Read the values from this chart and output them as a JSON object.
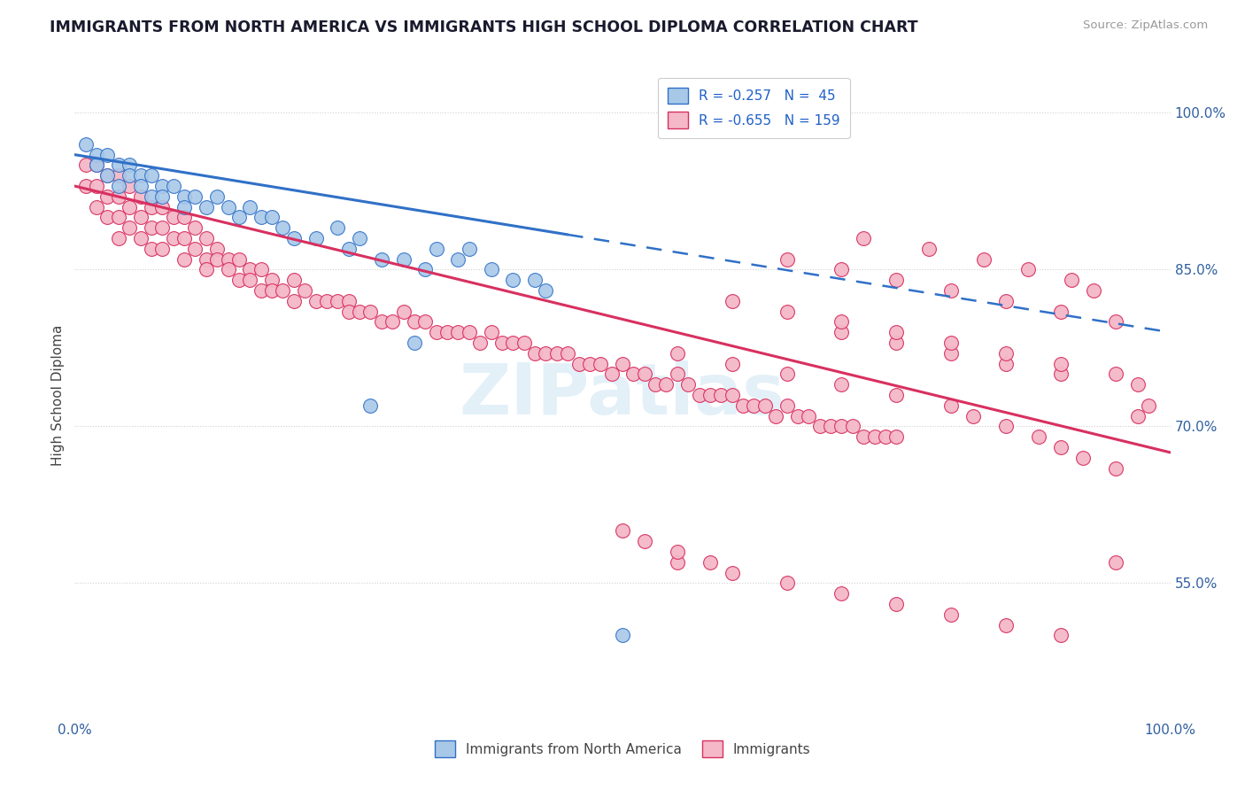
{
  "title": "IMMIGRANTS FROM NORTH AMERICA VS IMMIGRANTS HIGH SCHOOL DIPLOMA CORRELATION CHART",
  "source": "Source: ZipAtlas.com",
  "ylabel": "High School Diploma",
  "r_blue": -0.257,
  "n_blue": 45,
  "r_pink": -0.655,
  "n_pink": 159,
  "blue_color": "#a8c8e8",
  "pink_color": "#f4b8c8",
  "trendline_blue": "#3070c8",
  "trendline_pink": "#d83060",
  "xmin": 0.0,
  "xmax": 1.0,
  "ymin": 0.42,
  "ymax": 1.04,
  "right_yticks": [
    0.55,
    0.7,
    0.85,
    1.0
  ],
  "right_yticklabels": [
    "55.0%",
    "70.0%",
    "85.0%",
    "100.0%"
  ],
  "legend_label_blue": "Immigrants from North America",
  "legend_label_pink": "Immigrants",
  "watermark": "ZIPatlas",
  "blue_scatter_x": [
    0.01,
    0.02,
    0.02,
    0.03,
    0.03,
    0.04,
    0.04,
    0.05,
    0.05,
    0.06,
    0.06,
    0.07,
    0.07,
    0.08,
    0.08,
    0.09,
    0.1,
    0.1,
    0.11,
    0.12,
    0.13,
    0.14,
    0.15,
    0.17,
    0.19,
    0.2,
    0.22,
    0.25,
    0.28,
    0.3,
    0.32,
    0.35,
    0.38,
    0.4,
    0.42,
    0.16,
    0.18,
    0.24,
    0.26,
    0.33,
    0.36,
    0.43,
    0.5,
    0.27,
    0.31
  ],
  "blue_scatter_y": [
    0.97,
    0.96,
    0.95,
    0.96,
    0.94,
    0.95,
    0.93,
    0.95,
    0.94,
    0.94,
    0.93,
    0.94,
    0.92,
    0.93,
    0.92,
    0.93,
    0.92,
    0.91,
    0.92,
    0.91,
    0.92,
    0.91,
    0.9,
    0.9,
    0.89,
    0.88,
    0.88,
    0.87,
    0.86,
    0.86,
    0.85,
    0.86,
    0.85,
    0.84,
    0.84,
    0.91,
    0.9,
    0.89,
    0.88,
    0.87,
    0.87,
    0.83,
    0.5,
    0.72,
    0.78
  ],
  "pink_scatter_x": [
    0.01,
    0.01,
    0.02,
    0.02,
    0.02,
    0.03,
    0.03,
    0.03,
    0.04,
    0.04,
    0.04,
    0.04,
    0.05,
    0.05,
    0.05,
    0.06,
    0.06,
    0.06,
    0.07,
    0.07,
    0.07,
    0.08,
    0.08,
    0.08,
    0.09,
    0.09,
    0.1,
    0.1,
    0.1,
    0.11,
    0.11,
    0.12,
    0.12,
    0.12,
    0.13,
    0.13,
    0.14,
    0.14,
    0.15,
    0.15,
    0.16,
    0.16,
    0.17,
    0.17,
    0.18,
    0.18,
    0.19,
    0.2,
    0.2,
    0.21,
    0.22,
    0.23,
    0.24,
    0.25,
    0.25,
    0.26,
    0.27,
    0.28,
    0.29,
    0.3,
    0.31,
    0.32,
    0.33,
    0.34,
    0.35,
    0.36,
    0.37,
    0.38,
    0.39,
    0.4,
    0.41,
    0.42,
    0.43,
    0.44,
    0.45,
    0.46,
    0.47,
    0.48,
    0.49,
    0.5,
    0.51,
    0.52,
    0.53,
    0.54,
    0.55,
    0.56,
    0.57,
    0.58,
    0.59,
    0.6,
    0.61,
    0.62,
    0.63,
    0.64,
    0.65,
    0.66,
    0.67,
    0.68,
    0.69,
    0.7,
    0.71,
    0.72,
    0.73,
    0.74,
    0.75,
    0.55,
    0.6,
    0.65,
    0.7,
    0.75,
    0.8,
    0.82,
    0.85,
    0.88,
    0.9,
    0.92,
    0.95,
    0.97,
    0.7,
    0.75,
    0.8,
    0.85,
    0.9,
    0.6,
    0.65,
    0.7,
    0.75,
    0.8,
    0.85,
    0.9,
    0.95,
    0.97,
    0.55,
    0.6,
    0.65,
    0.7,
    0.75,
    0.8,
    0.85,
    0.9,
    0.95,
    0.65,
    0.7,
    0.75,
    0.8,
    0.85,
    0.9,
    0.95,
    0.98,
    0.72,
    0.78,
    0.83,
    0.87,
    0.91,
    0.93,
    0.5,
    0.52,
    0.55,
    0.58
  ],
  "pink_scatter_y": [
    0.95,
    0.93,
    0.95,
    0.93,
    0.91,
    0.94,
    0.92,
    0.9,
    0.94,
    0.92,
    0.9,
    0.88,
    0.93,
    0.91,
    0.89,
    0.92,
    0.9,
    0.88,
    0.91,
    0.89,
    0.87,
    0.91,
    0.89,
    0.87,
    0.9,
    0.88,
    0.9,
    0.88,
    0.86,
    0.89,
    0.87,
    0.88,
    0.86,
    0.85,
    0.87,
    0.86,
    0.86,
    0.85,
    0.86,
    0.84,
    0.85,
    0.84,
    0.85,
    0.83,
    0.84,
    0.83,
    0.83,
    0.84,
    0.82,
    0.83,
    0.82,
    0.82,
    0.82,
    0.82,
    0.81,
    0.81,
    0.81,
    0.8,
    0.8,
    0.81,
    0.8,
    0.8,
    0.79,
    0.79,
    0.79,
    0.79,
    0.78,
    0.79,
    0.78,
    0.78,
    0.78,
    0.77,
    0.77,
    0.77,
    0.77,
    0.76,
    0.76,
    0.76,
    0.75,
    0.76,
    0.75,
    0.75,
    0.74,
    0.74,
    0.75,
    0.74,
    0.73,
    0.73,
    0.73,
    0.73,
    0.72,
    0.72,
    0.72,
    0.71,
    0.72,
    0.71,
    0.71,
    0.7,
    0.7,
    0.7,
    0.7,
    0.69,
    0.69,
    0.69,
    0.69,
    0.77,
    0.76,
    0.75,
    0.74,
    0.73,
    0.72,
    0.71,
    0.7,
    0.69,
    0.68,
    0.67,
    0.66,
    0.71,
    0.79,
    0.78,
    0.77,
    0.76,
    0.75,
    0.82,
    0.81,
    0.8,
    0.79,
    0.78,
    0.77,
    0.76,
    0.75,
    0.74,
    0.57,
    0.56,
    0.55,
    0.54,
    0.53,
    0.52,
    0.51,
    0.5,
    0.57,
    0.86,
    0.85,
    0.84,
    0.83,
    0.82,
    0.81,
    0.8,
    0.72,
    0.88,
    0.87,
    0.86,
    0.85,
    0.84,
    0.83,
    0.6,
    0.59,
    0.58,
    0.57
  ]
}
